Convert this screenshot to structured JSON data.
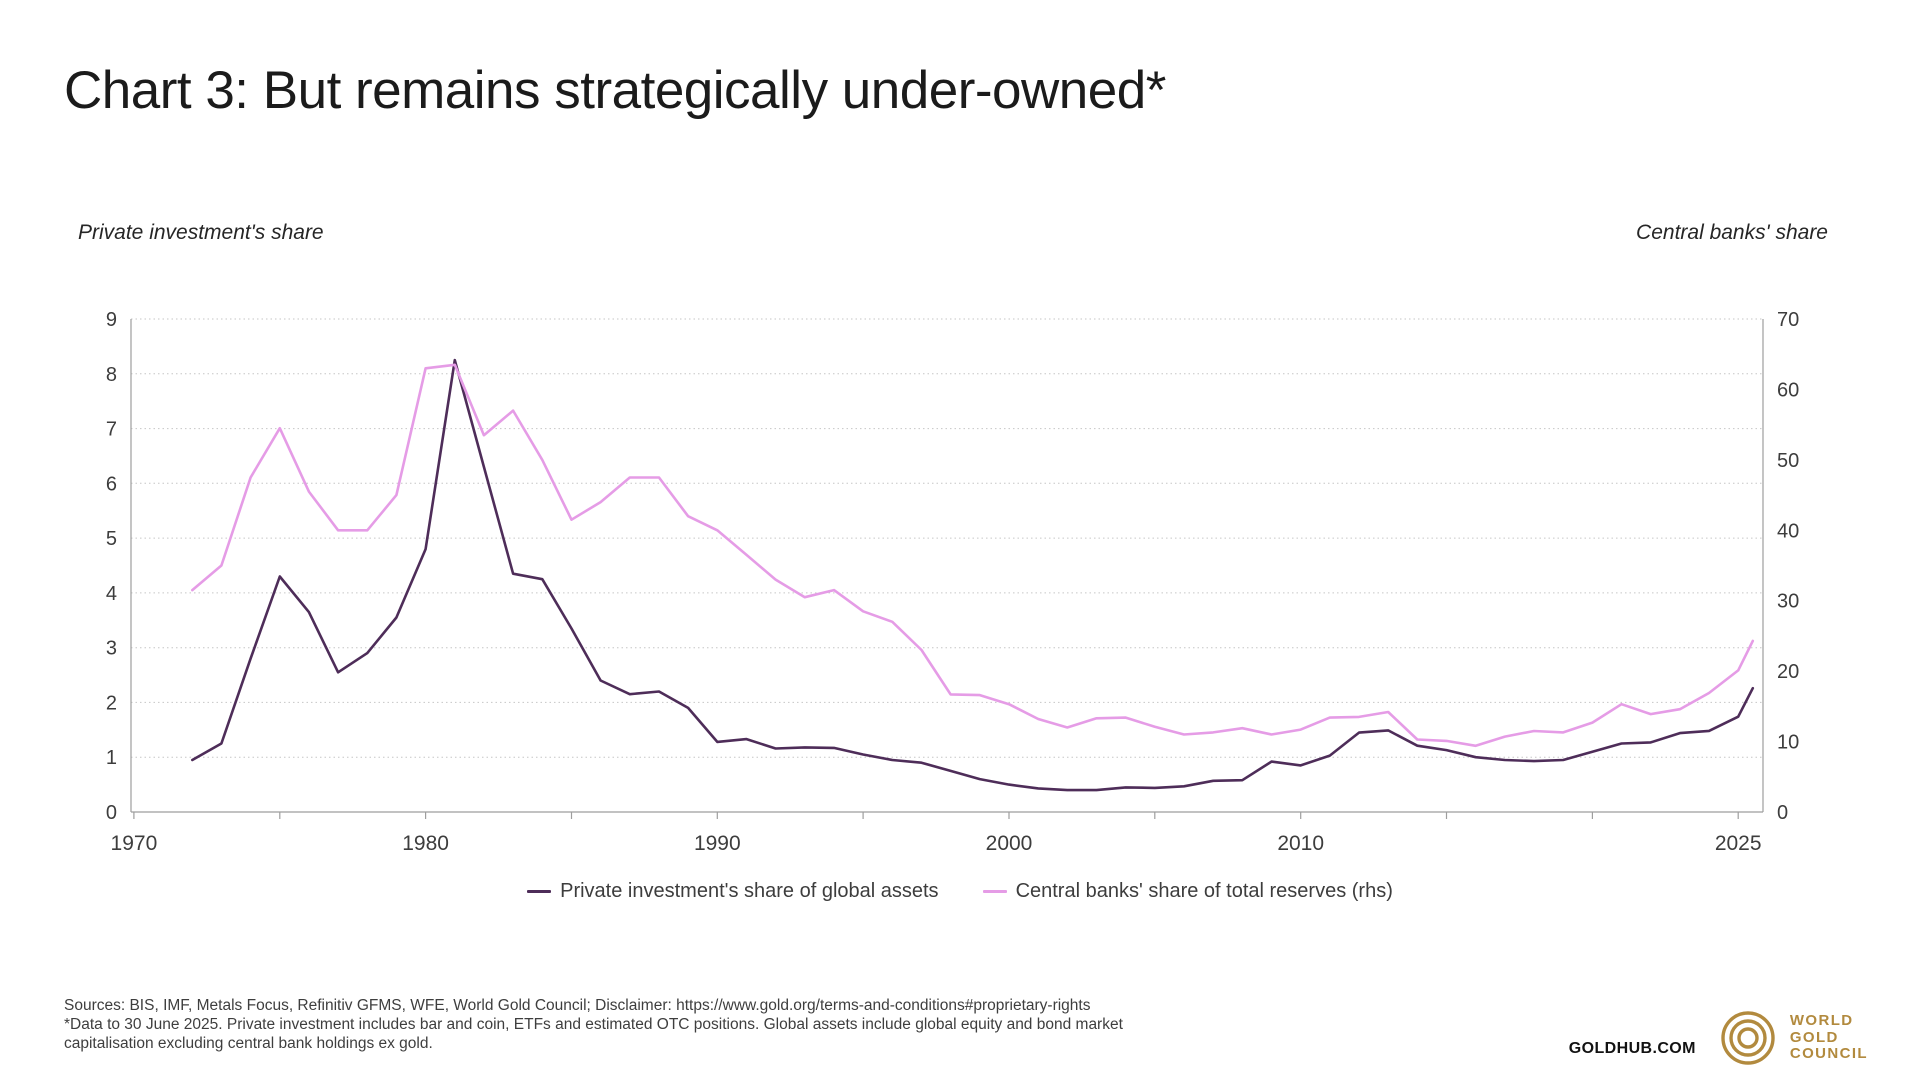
{
  "page": {
    "title": "Chart 3: But remains strategically under-owned*",
    "footer_lines": [
      "Sources: BIS, IMF, Metals Focus, Refinitiv GFMS, WFE, World Gold Council; Disclaimer: https://www.gold.org/terms-and-conditions#proprietary-rights",
      "*Data to 30 June 2025. Private investment includes bar and coin, ETFs and estimated OTC positions. Global assets include global equity and bond market",
      "capitalisation excluding central bank holdings ex gold."
    ],
    "goldhub_wordmark": "GOLDHUB.COM",
    "logo_lines": {
      "l1": "WORLD",
      "l2": "GOLD",
      "l3": "COUNCIL"
    },
    "brand_gold_color": "#b28a3e"
  },
  "chart_data": {
    "type": "line",
    "title": "Chart 3: But remains strategically under-owned*",
    "left_axis_label": "Private investment's share",
    "right_axis_label": "Central banks' share",
    "grid": "horizontal-dotted",
    "legend_position": "bottom-center",
    "x": [
      1972,
      1973,
      1974,
      1975,
      1976,
      1977,
      1978,
      1979,
      1980,
      1981,
      1982,
      1983,
      1984,
      1985,
      1986,
      1987,
      1988,
      1989,
      1990,
      1991,
      1992,
      1993,
      1994,
      1995,
      1996,
      1997,
      1998,
      1999,
      2000,
      2001,
      2002,
      2003,
      2004,
      2005,
      2006,
      2007,
      2008,
      2009,
      2010,
      2011,
      2012,
      2013,
      2014,
      2015,
      2016,
      2017,
      2018,
      2019,
      2020,
      2021,
      2022,
      2023,
      2024,
      2025,
      2025.5
    ],
    "series": [
      {
        "name": "Private investment's share of global assets",
        "axis": "left",
        "color": "#4e2d59",
        "values": [
          0.95,
          1.25,
          2.8,
          4.3,
          3.65,
          2.55,
          2.9,
          3.55,
          4.8,
          8.25,
          6.3,
          4.35,
          4.25,
          3.35,
          2.4,
          2.15,
          2.2,
          1.9,
          1.28,
          1.33,
          1.16,
          1.18,
          1.17,
          1.05,
          0.95,
          0.9,
          0.75,
          0.6,
          0.5,
          0.43,
          0.4,
          0.4,
          0.45,
          0.44,
          0.47,
          0.57,
          0.58,
          0.92,
          0.85,
          1.03,
          1.45,
          1.49,
          1.21,
          1.13,
          1.0,
          0.95,
          0.93,
          0.95,
          1.1,
          1.25,
          1.27,
          1.44,
          1.48,
          1.74,
          2.26
        ]
      },
      {
        "name": "Central banks' share of total reserves (rhs)",
        "axis": "right",
        "color": "#e59ce6",
        "values": [
          31.5,
          35,
          47.5,
          54.5,
          45.5,
          40,
          40,
          45,
          63,
          63.5,
          53.5,
          57,
          50,
          41.5,
          44,
          47.5,
          47.5,
          42,
          40,
          36.5,
          33,
          30.5,
          31.5,
          28.5,
          27,
          23,
          16.7,
          16.6,
          15.3,
          13.2,
          12,
          13.3,
          13.4,
          12.1,
          11,
          11.3,
          11.9,
          11,
          11.7,
          13.4,
          13.5,
          14.2,
          10.3,
          10.1,
          9.4,
          10.7,
          11.5,
          11.3,
          12.7,
          15.3,
          13.9,
          14.6,
          16.9,
          20.1,
          24.3
        ]
      }
    ],
    "y_left": {
      "min": 0,
      "max": 9,
      "ticks": [
        0,
        1,
        2,
        3,
        4,
        5,
        6,
        7,
        8,
        9
      ]
    },
    "y_right": {
      "min": 0,
      "max": 70,
      "ticks": [
        0,
        10,
        20,
        30,
        40,
        50,
        60,
        70
      ]
    },
    "x_axis": {
      "range": [
        1970,
        2026
      ],
      "ticks": [
        {
          "year": 1970,
          "label": "1970"
        },
        {
          "year": 1975,
          "label": ""
        },
        {
          "year": 1980,
          "label": "1980"
        },
        {
          "year": 1985,
          "label": ""
        },
        {
          "year": 1990,
          "label": "1990"
        },
        {
          "year": 1995,
          "label": ""
        },
        {
          "year": 2000,
          "label": "2000"
        },
        {
          "year": 2005,
          "label": ""
        },
        {
          "year": 2010,
          "label": "2010"
        },
        {
          "year": 2015,
          "label": ""
        },
        {
          "year": 2020,
          "label": ""
        },
        {
          "year": 2025,
          "label": "2025"
        }
      ]
    }
  }
}
